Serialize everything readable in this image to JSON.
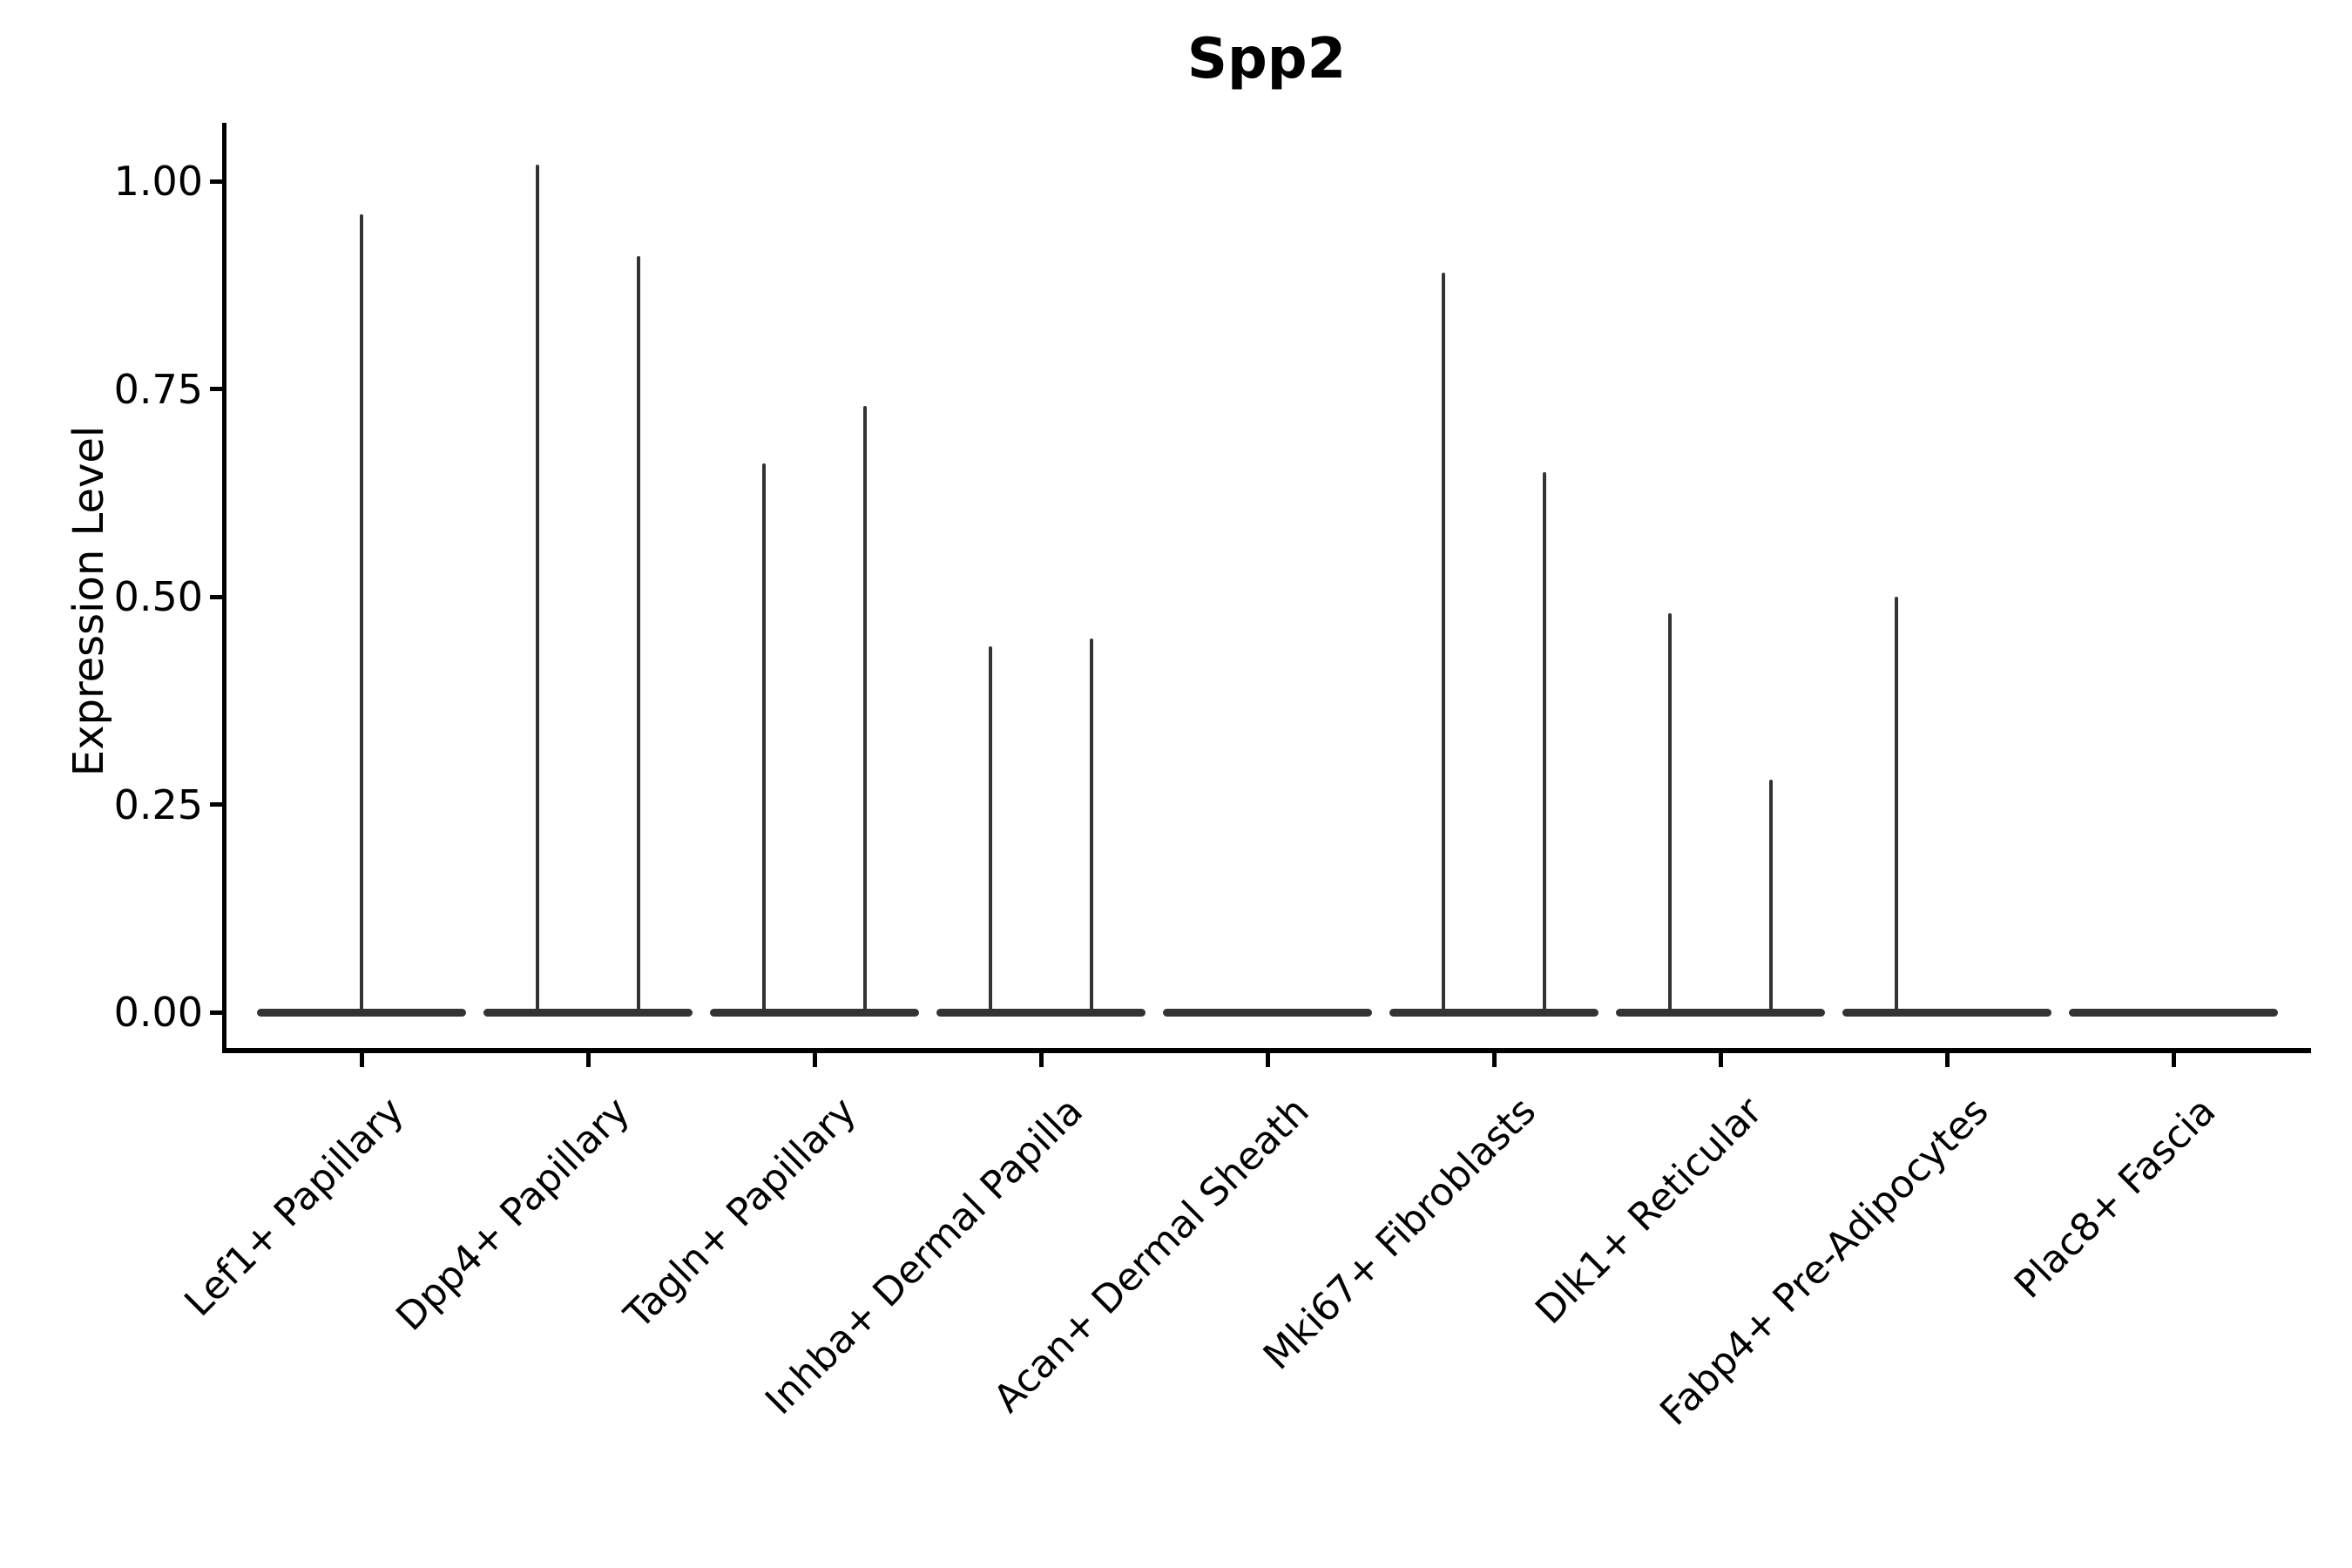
{
  "figure": {
    "title": "Spp2",
    "y_axis_label": "Expression Level",
    "background_color": "#ffffff",
    "text_color": "#000000",
    "violin_color": "#333333"
  },
  "chart_data": {
    "type": "violin",
    "title": "Spp2",
    "xlabel": "",
    "ylabel": "Expression Level",
    "ylim": [
      0,
      1.07
    ],
    "yticks": [
      0.0,
      0.25,
      0.5,
      0.75,
      1.0
    ],
    "ytick_labels": [
      "0.00",
      "0.25",
      "0.50",
      "0.75",
      "1.00"
    ],
    "grid": false,
    "legend": "none",
    "x_tick_label_rotation_deg": 45,
    "description": "Violin plot of Spp2 expression level per cell type; each violin has a wide flat base at 0 (most cells not expressing) and a thin vertical spike reaching the maximum expression value. Some categories contain two violins side by side; spike offset is relative to the category center.",
    "categories": [
      "Lef1+ Papillary",
      "Dpp4+ Papillary",
      "Tagln+ Papillary",
      "Inhba+ Dermal Papilla",
      "Acan+ Dermal Sheath",
      "Mki67+ Fibroblasts",
      "Dlk1+ Reticular",
      "Fabp4+ Pre-Adipocytes",
      "Plac8+ Fascia"
    ],
    "violins": [
      {
        "category": "Lef1+ Papillary",
        "base_at_zero": true,
        "spikes": [
          {
            "offset": "center",
            "max": 0.96
          }
        ]
      },
      {
        "category": "Dpp4+ Papillary",
        "base_at_zero": true,
        "spikes": [
          {
            "offset": "left",
            "max": 1.02
          },
          {
            "offset": "right",
            "max": 0.91
          }
        ]
      },
      {
        "category": "Tagln+ Papillary",
        "base_at_zero": true,
        "spikes": [
          {
            "offset": "left",
            "max": 0.66
          },
          {
            "offset": "right",
            "max": 0.73
          }
        ]
      },
      {
        "category": "Inhba+ Dermal Papilla",
        "base_at_zero": true,
        "spikes": [
          {
            "offset": "left",
            "max": 0.44
          },
          {
            "offset": "right",
            "max": 0.45
          }
        ]
      },
      {
        "category": "Acan+ Dermal Sheath",
        "base_at_zero": true,
        "spikes": []
      },
      {
        "category": "Mki67+ Fibroblasts",
        "base_at_zero": true,
        "spikes": [
          {
            "offset": "left",
            "max": 0.89
          },
          {
            "offset": "right",
            "max": 0.65
          }
        ]
      },
      {
        "category": "Dlk1+ Reticular",
        "base_at_zero": true,
        "spikes": [
          {
            "offset": "left",
            "max": 0.48
          },
          {
            "offset": "right",
            "max": 0.28
          }
        ]
      },
      {
        "category": "Fabp4+ Pre-Adipocytes",
        "base_at_zero": true,
        "spikes": [
          {
            "offset": "left",
            "max": 0.5
          }
        ]
      },
      {
        "category": "Plac8+ Fascia",
        "base_at_zero": true,
        "spikes": []
      }
    ]
  }
}
